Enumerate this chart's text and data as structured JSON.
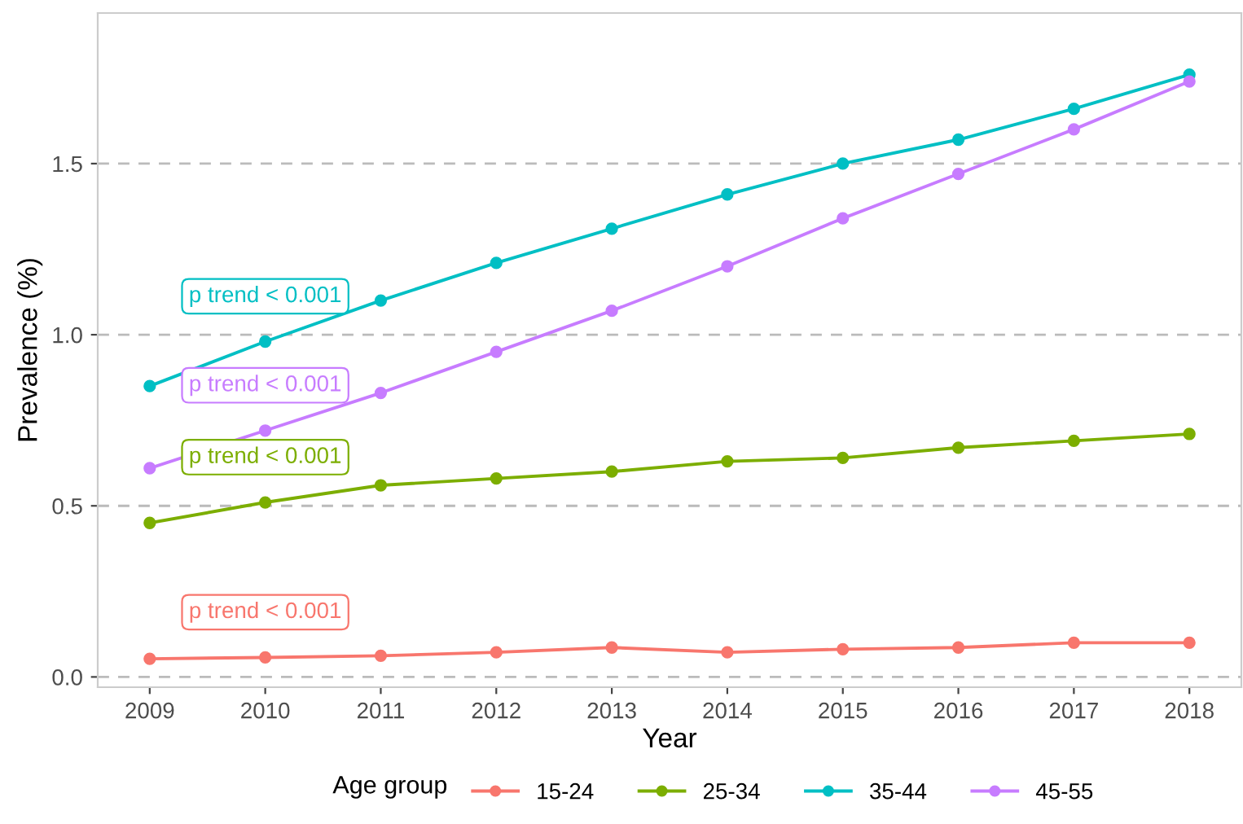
{
  "chart_data": {
    "type": "line",
    "xlabel": "Year",
    "ylabel": "Prevalence (%)",
    "legend_title": "Age group",
    "x": [
      2009,
      2010,
      2011,
      2012,
      2013,
      2014,
      2015,
      2016,
      2017,
      2018
    ],
    "series": [
      {
        "name": "15-24",
        "color": "#f8766d",
        "values": [
          0.053,
          0.057,
          0.062,
          0.072,
          0.086,
          0.072,
          0.081,
          0.086,
          0.1,
          0.1
        ]
      },
      {
        "name": "25-34",
        "color": "#7cae00",
        "values": [
          0.45,
          0.51,
          0.56,
          0.58,
          0.6,
          0.63,
          0.64,
          0.67,
          0.69,
          0.71
        ]
      },
      {
        "name": "35-44",
        "color": "#00bfc4",
        "values": [
          0.85,
          0.98,
          1.1,
          1.21,
          1.31,
          1.41,
          1.5,
          1.57,
          1.66,
          1.76
        ]
      },
      {
        "name": "45-55",
        "color": "#c77cff",
        "values": [
          0.61,
          0.72,
          0.83,
          0.95,
          1.07,
          1.2,
          1.34,
          1.47,
          1.6,
          1.74
        ]
      }
    ],
    "annotations": [
      "p trend < 0.001",
      "p trend < 0.001",
      "p trend < 0.001",
      "p trend < 0.001"
    ],
    "xlim": [
      2008.55,
      2018.45
    ],
    "xticks": [
      2009,
      2010,
      2011,
      2012,
      2013,
      2014,
      2015,
      2016,
      2017,
      2018
    ],
    "ylim": [
      -0.03,
      1.94
    ],
    "yticks": [
      {
        "value": 0,
        "label": "0.0"
      },
      0.5,
      {
        "value": 1,
        "label": "1.0"
      },
      1.5
    ],
    "grid": "y",
    "legend": "bottom",
    "marker": "circle",
    "line_style": "solid"
  }
}
